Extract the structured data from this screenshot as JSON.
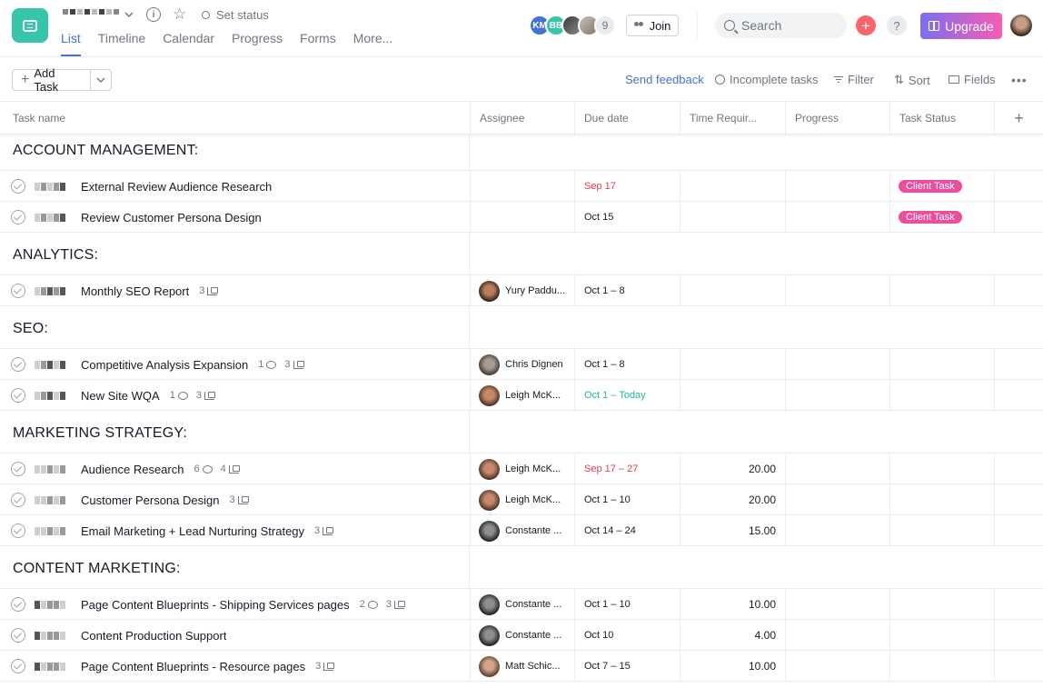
{
  "header": {
    "set_status": "Set status",
    "tabs": [
      {
        "label": "List",
        "active": true
      },
      {
        "label": "Timeline",
        "active": false
      },
      {
        "label": "Calendar",
        "active": false
      },
      {
        "label": "Progress",
        "active": false
      },
      {
        "label": "Forms",
        "active": false
      },
      {
        "label": "More...",
        "active": false
      }
    ],
    "members": [
      {
        "initials": "KM",
        "color": "#4573d2"
      },
      {
        "initials": "BB",
        "color": "#37c5ab"
      }
    ],
    "member_count": "9",
    "join_label": "Join",
    "search_placeholder": "Search",
    "plus_label": "+",
    "help_label": "?",
    "upgrade_label": "Upgrade"
  },
  "toolbar": {
    "add_task_label": "Add Task",
    "send_feedback": "Send feedback",
    "incomplete_tasks": "Incomplete tasks",
    "filter": "Filter",
    "sort": "Sort",
    "fields": "Fields"
  },
  "columns": {
    "task_name": "Task name",
    "assignee": "Assignee",
    "due_date": "Due date",
    "time_required": "Time Requir...",
    "progress": "Progress",
    "task_status": "Task Status"
  },
  "colors": {
    "accent": "#4573d2",
    "client_task_pill": "#ea4e9d",
    "overdue": "#e8384f",
    "today": "#25b39e"
  },
  "sections": [
    {
      "title": "ACCOUNT MANAGEMENT:",
      "tasks": [
        {
          "name": "External Review Audience Research",
          "comments": "",
          "subtasks": "",
          "assignee": "",
          "avatar": "",
          "due": "Sep 17",
          "due_style": "red",
          "time": "",
          "status": "Client Task"
        },
        {
          "name": "Review Customer Persona Design",
          "comments": "",
          "subtasks": "",
          "assignee": "",
          "avatar": "",
          "due": "Oct 15",
          "due_style": "",
          "time": "",
          "status": "Client Task"
        }
      ]
    },
    {
      "title": "ANALYTICS:",
      "tasks": [
        {
          "name": "Monthly SEO Report",
          "comments": "",
          "subtasks": "3",
          "assignee": "Yury Paddu...",
          "avatar": "yury",
          "due": "Oct 1 – 8",
          "due_style": "",
          "time": "",
          "status": ""
        }
      ]
    },
    {
      "title": "SEO:",
      "tasks": [
        {
          "name": "Competitive Analysis Expansion",
          "comments": "1",
          "subtasks": "3",
          "assignee": "Chris Dignen",
          "avatar": "chris",
          "due": "Oct 1 – 8",
          "due_style": "",
          "time": "",
          "status": ""
        },
        {
          "name": "New Site WQA",
          "comments": "1",
          "subtasks": "3",
          "assignee": "Leigh McK...",
          "avatar": "leigh",
          "due": "Oct 1 – Today",
          "due_style": "green",
          "time": "",
          "status": ""
        }
      ]
    },
    {
      "title": "MARKETING STRATEGY:",
      "tasks": [
        {
          "name": "Audience Research",
          "comments": "6",
          "subtasks": "4",
          "assignee": "Leigh McK...",
          "avatar": "leigh",
          "due": "Sep 17 – 27",
          "due_style": "red",
          "time": "20.00",
          "status": ""
        },
        {
          "name": "Customer Persona Design",
          "comments": "",
          "subtasks": "3",
          "assignee": "Leigh McK...",
          "avatar": "leigh",
          "due": "Oct 1 – 10",
          "due_style": "",
          "time": "20.00",
          "status": ""
        },
        {
          "name": "Email Marketing + Lead Nurturing Strategy",
          "comments": "",
          "subtasks": "3",
          "assignee": "Constante ...",
          "avatar": "constante",
          "due": "Oct 14 – 24",
          "due_style": "",
          "time": "15.00",
          "status": ""
        }
      ]
    },
    {
      "title": "CONTENT MARKETING:",
      "tasks": [
        {
          "name": "Page Content Blueprints - Shipping Services pages",
          "comments": "2",
          "subtasks": "3",
          "assignee": "Constante ...",
          "avatar": "constante",
          "due": "Oct 1 – 10",
          "due_style": "",
          "time": "10.00",
          "status": ""
        },
        {
          "name": "Content Production Support",
          "comments": "",
          "subtasks": "",
          "assignee": "Constante ...",
          "avatar": "constante",
          "due": "Oct 10",
          "due_style": "",
          "time": "4.00",
          "status": ""
        },
        {
          "name": "Page Content Blueprints - Resource pages",
          "comments": "",
          "subtasks": "3",
          "assignee": "Matt Schic...",
          "avatar": "matt",
          "due": "Oct 7 – 15",
          "due_style": "",
          "time": "10.00",
          "status": ""
        }
      ]
    }
  ]
}
